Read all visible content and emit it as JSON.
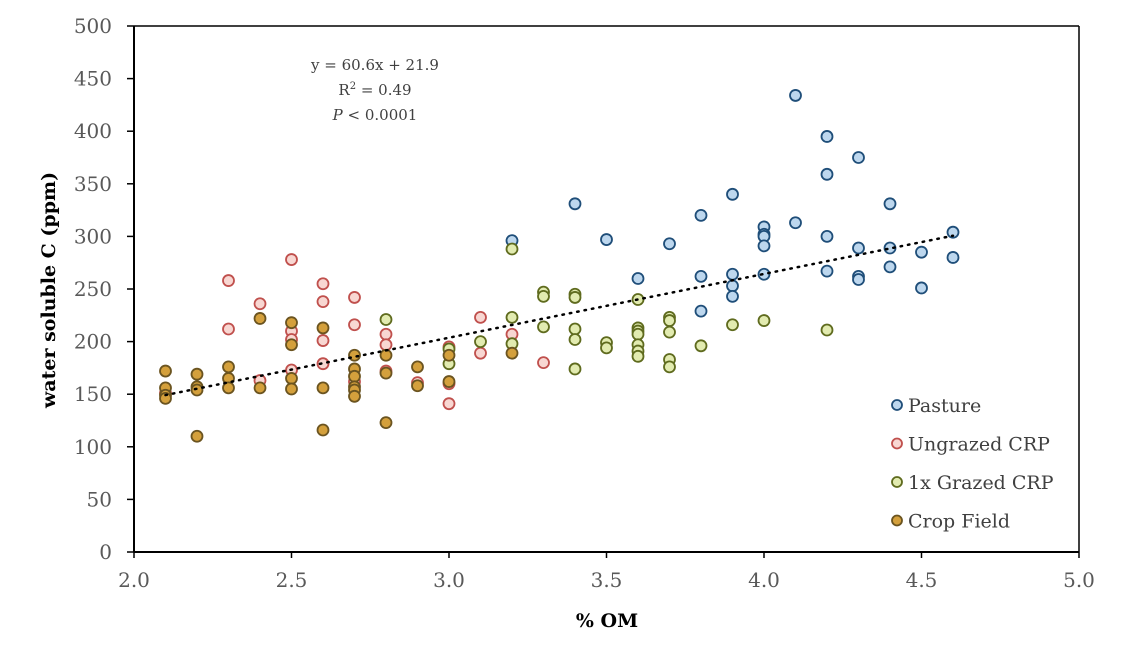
{
  "chart_data": {
    "type": "scatter",
    "title": "",
    "xlabel": "% OM",
    "ylabel": "water soluble C (ppm)",
    "xlim": [
      2.0,
      5.0
    ],
    "ylim": [
      0,
      500
    ],
    "xticks": [
      "2.0",
      "2.5",
      "3.0",
      "3.5",
      "4.0",
      "4.5",
      "5.0"
    ],
    "xtick_values": [
      2.0,
      2.5,
      3.0,
      3.5,
      4.0,
      4.5,
      5.0
    ],
    "yticks": [
      "0",
      "50",
      "100",
      "150",
      "200",
      "250",
      "300",
      "350",
      "400",
      "450",
      "500"
    ],
    "ytick_values": [
      0,
      50,
      100,
      150,
      200,
      250,
      300,
      350,
      400,
      450,
      500
    ],
    "grid": false,
    "legend_position": "bottom-right",
    "annotation": {
      "equation": "y = 60.6x + 21.9",
      "r2_prefix": "R",
      "r2_sup": "2",
      "r2_suffix": " = 0.49",
      "p_label": "P",
      "p_value": " < 0.0001"
    },
    "trendline": {
      "slope": 60.6,
      "intercept": 21.9,
      "x_range": [
        2.1,
        4.6
      ],
      "style": "dotted"
    },
    "series": [
      {
        "name": "Pasture",
        "fill": "#BDD7EE",
        "stroke": "#1F4E79",
        "points": [
          [
            3.2,
            296
          ],
          [
            3.4,
            331
          ],
          [
            3.5,
            297
          ],
          [
            3.6,
            260
          ],
          [
            3.7,
            293
          ],
          [
            3.8,
            320
          ],
          [
            3.8,
            262
          ],
          [
            3.8,
            229
          ],
          [
            3.9,
            340
          ],
          [
            3.9,
            264
          ],
          [
            3.9,
            253
          ],
          [
            3.9,
            243
          ],
          [
            4.0,
            309
          ],
          [
            4.0,
            302
          ],
          [
            4.0,
            300
          ],
          [
            4.0,
            291
          ],
          [
            4.0,
            264
          ],
          [
            4.1,
            434
          ],
          [
            4.1,
            313
          ],
          [
            4.2,
            395
          ],
          [
            4.2,
            359
          ],
          [
            4.2,
            300
          ],
          [
            4.2,
            267
          ],
          [
            4.3,
            375
          ],
          [
            4.3,
            289
          ],
          [
            4.3,
            262
          ],
          [
            4.3,
            259
          ],
          [
            4.4,
            331
          ],
          [
            4.4,
            289
          ],
          [
            4.4,
            271
          ],
          [
            4.5,
            285
          ],
          [
            4.5,
            251
          ],
          [
            4.6,
            304
          ],
          [
            4.6,
            280
          ]
        ]
      },
      {
        "name": "Ungrazed CRP",
        "fill": "#F8D7D2",
        "stroke": "#C0504D",
        "points": [
          [
            2.1,
            151
          ],
          [
            2.3,
            258
          ],
          [
            2.3,
            212
          ],
          [
            2.4,
            236
          ],
          [
            2.4,
            163
          ],
          [
            2.5,
            278
          ],
          [
            2.5,
            210
          ],
          [
            2.5,
            202
          ],
          [
            2.5,
            173
          ],
          [
            2.6,
            255
          ],
          [
            2.6,
            238
          ],
          [
            2.6,
            201
          ],
          [
            2.6,
            179
          ],
          [
            2.7,
            242
          ],
          [
            2.7,
            216
          ],
          [
            2.7,
            162
          ],
          [
            2.8,
            207
          ],
          [
            2.8,
            197
          ],
          [
            2.8,
            172
          ],
          [
            2.9,
            161
          ],
          [
            3.0,
            195
          ],
          [
            3.0,
            160
          ],
          [
            3.0,
            141
          ],
          [
            3.1,
            223
          ],
          [
            3.1,
            189
          ],
          [
            3.2,
            207
          ],
          [
            3.3,
            180
          ]
        ]
      },
      {
        "name": "1x Grazed CRP",
        "fill": "#E2EBB0",
        "stroke": "#5F6B1E",
        "points": [
          [
            2.8,
            221
          ],
          [
            3.0,
            193
          ],
          [
            3.0,
            179
          ],
          [
            3.1,
            200
          ],
          [
            3.2,
            288
          ],
          [
            3.2,
            223
          ],
          [
            3.2,
            198
          ],
          [
            3.3,
            247
          ],
          [
            3.3,
            243
          ],
          [
            3.3,
            214
          ],
          [
            3.4,
            245
          ],
          [
            3.4,
            242
          ],
          [
            3.4,
            212
          ],
          [
            3.4,
            202
          ],
          [
            3.4,
            174
          ],
          [
            3.5,
            199
          ],
          [
            3.5,
            194
          ],
          [
            3.6,
            240
          ],
          [
            3.6,
            213
          ],
          [
            3.6,
            210
          ],
          [
            3.6,
            207
          ],
          [
            3.6,
            197
          ],
          [
            3.6,
            191
          ],
          [
            3.6,
            186
          ],
          [
            3.7,
            223
          ],
          [
            3.7,
            220
          ],
          [
            3.7,
            209
          ],
          [
            3.7,
            183
          ],
          [
            3.7,
            176
          ],
          [
            3.8,
            196
          ],
          [
            3.9,
            216
          ],
          [
            4.0,
            220
          ],
          [
            4.2,
            211
          ]
        ]
      },
      {
        "name": "Crop Field",
        "fill": "#D4A03C",
        "stroke": "#6B5420",
        "points": [
          [
            2.1,
            172
          ],
          [
            2.1,
            156
          ],
          [
            2.1,
            149
          ],
          [
            2.1,
            146
          ],
          [
            2.2,
            169
          ],
          [
            2.2,
            157
          ],
          [
            2.2,
            154
          ],
          [
            2.2,
            110
          ],
          [
            2.3,
            176
          ],
          [
            2.3,
            165
          ],
          [
            2.3,
            156
          ],
          [
            2.4,
            222
          ],
          [
            2.4,
            156
          ],
          [
            2.5,
            218
          ],
          [
            2.5,
            197
          ],
          [
            2.5,
            165
          ],
          [
            2.5,
            155
          ],
          [
            2.6,
            213
          ],
          [
            2.6,
            156
          ],
          [
            2.6,
            116
          ],
          [
            2.7,
            187
          ],
          [
            2.7,
            174
          ],
          [
            2.7,
            167
          ],
          [
            2.7,
            157
          ],
          [
            2.7,
            154
          ],
          [
            2.7,
            148
          ],
          [
            2.8,
            187
          ],
          [
            2.8,
            170
          ],
          [
            2.8,
            123
          ],
          [
            2.9,
            176
          ],
          [
            2.9,
            158
          ],
          [
            3.0,
            187
          ],
          [
            3.0,
            162
          ],
          [
            3.2,
            189
          ]
        ]
      }
    ]
  }
}
